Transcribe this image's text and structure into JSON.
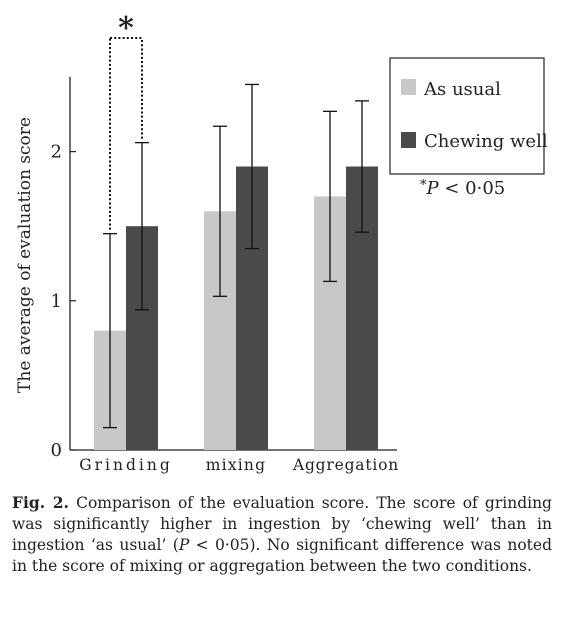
{
  "chart_data": {
    "type": "bar",
    "ylabel": "The average  of evaluation score",
    "ylim": [
      0,
      2.5
    ],
    "yticks": [
      "0",
      "1",
      "2"
    ],
    "categories": [
      "Grinding",
      "mixing",
      "Aggregation"
    ],
    "series": [
      {
        "name": "As usual",
        "color": "#c8c8c8",
        "values": [
          0.8,
          1.6,
          1.7
        ],
        "error": [
          0.65,
          0.57,
          0.57
        ]
      },
      {
        "name": "Chewing well",
        "color": "#4a4a4a",
        "values": [
          1.5,
          1.9,
          1.9
        ],
        "error": [
          0.56,
          0.55,
          0.44
        ]
      }
    ],
    "significance": {
      "category_index": 0,
      "mark": "*"
    },
    "legend_position": "top-right",
    "footnote": {
      "prefix": "*",
      "italic_p": "P",
      "rest": " < 0·05"
    }
  },
  "caption": {
    "label": "Fig. 2.",
    "text_before_p": " Comparison of the evaluation score. The score of grinding was significantly higher in ingestion by ‘chewing well’ than in ingestion ‘as usual’ (",
    "p": "P",
    "text_after_p": " < 0·05). No significant difference was noted in the score of mixing or aggregation between the two conditions."
  }
}
